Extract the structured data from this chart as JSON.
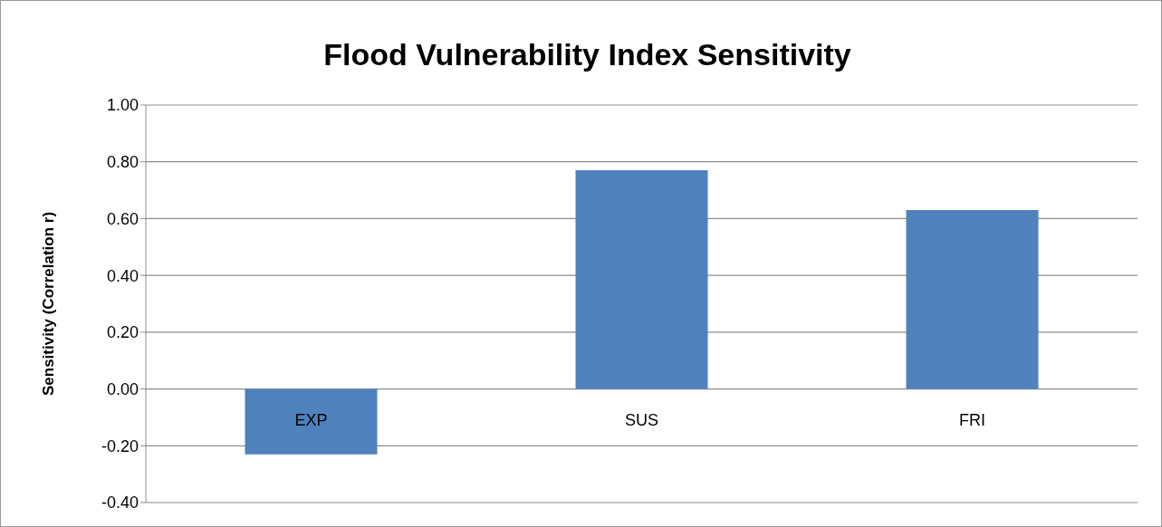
{
  "chart_data": {
    "type": "bar",
    "title": "Flood Vulnerability Index Sensitivity",
    "ylabel": "Sensitivity (Correlation r)",
    "categories": [
      "EXP",
      "SUS",
      "FRI"
    ],
    "values": [
      -0.23,
      0.77,
      0.63
    ],
    "color": "#4f81bd",
    "ylim": [
      -0.4,
      1
    ],
    "yticks": [
      {
        "value": -0.4,
        "label": "-0.40"
      },
      {
        "value": -0.2,
        "label": "-0.20"
      },
      {
        "value": 0,
        "label": "0.00"
      },
      {
        "value": 0.2,
        "label": "0.20"
      },
      {
        "value": 0.4,
        "label": "0.40"
      },
      {
        "value": 0.6,
        "label": "0.60"
      },
      {
        "value": 0.8,
        "label": "0.80"
      },
      {
        "value": 1,
        "label": "1.00"
      }
    ],
    "grid": "y",
    "legend": false
  }
}
